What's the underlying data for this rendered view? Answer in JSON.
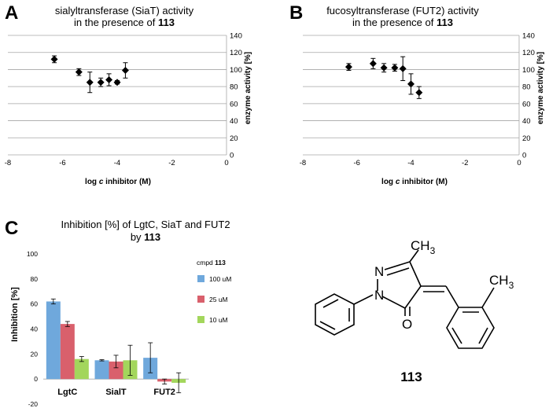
{
  "chart_data": [
    {
      "panel": "A",
      "type": "scatter",
      "title_line1": "sialyltransferase (SiaT) activity",
      "title_line2_prefix": "in the presence of ",
      "title_line2_bold": "113",
      "xlabel_prefix": "log ",
      "xlabel_italic": "c",
      "xlabel_suffix": " inhibitor (M)",
      "ylabel": "enzyme activity [%]",
      "xlim": [
        -8,
        0
      ],
      "ylim": [
        0,
        140
      ],
      "xticks": [
        -8,
        -6,
        -4,
        -2,
        0
      ],
      "yticks": [
        0,
        20,
        40,
        60,
        80,
        100,
        120,
        140
      ],
      "points": [
        {
          "x": -6.3,
          "y": 112,
          "err": 4
        },
        {
          "x": -5.4,
          "y": 97,
          "err": 4
        },
        {
          "x": -5.0,
          "y": 85,
          "err": 12
        },
        {
          "x": -4.6,
          "y": 85,
          "err": 5
        },
        {
          "x": -4.3,
          "y": 88,
          "err": 7
        },
        {
          "x": -4.0,
          "y": 85,
          "err": 2
        },
        {
          "x": -3.7,
          "y": 99,
          "err": 9
        }
      ]
    },
    {
      "panel": "B",
      "type": "scatter",
      "title_line1": "fucosyltransferase (FUT2) activity",
      "title_line2_prefix": "in the presence of ",
      "title_line2_bold": "113",
      "xlabel_prefix": "log ",
      "xlabel_italic": "c",
      "xlabel_suffix": " inhibitor (M)",
      "ylabel": "enzyme activity [%]",
      "xlim": [
        -8,
        0
      ],
      "ylim": [
        0,
        140
      ],
      "xticks": [
        -8,
        -6,
        -4,
        -2,
        0
      ],
      "yticks": [
        0,
        20,
        40,
        60,
        80,
        100,
        120,
        140
      ],
      "points": [
        {
          "x": -6.3,
          "y": 103,
          "err": 4
        },
        {
          "x": -5.4,
          "y": 107,
          "err": 6
        },
        {
          "x": -5.0,
          "y": 102,
          "err": 5
        },
        {
          "x": -4.6,
          "y": 102,
          "err": 4
        },
        {
          "x": -4.3,
          "y": 101,
          "err": 14
        },
        {
          "x": -4.0,
          "y": 83,
          "err": 12
        },
        {
          "x": -3.7,
          "y": 73,
          "err": 7
        }
      ]
    },
    {
      "panel": "C",
      "type": "bar",
      "title_line1": "Inhibition [%] of LgtC, SiaT and FUT2",
      "title_line2_prefix": "by ",
      "title_line2_bold": "113",
      "ylabel": "Inhibition [%]",
      "ylim": [
        -20,
        100
      ],
      "yticks": [
        -20,
        0,
        20,
        40,
        60,
        80,
        100
      ],
      "categories": [
        "LgtC",
        "SialT",
        "FUT2"
      ],
      "legend_title_prefix": "cmpd ",
      "legend_title_bold": "113",
      "series": [
        {
          "name": "100 uM",
          "color": "#6fa8dc",
          "values": [
            62,
            15,
            17
          ],
          "errors": [
            2,
            0.5,
            12
          ]
        },
        {
          "name": "25 uM",
          "color": "#d9606c",
          "values": [
            44,
            14,
            -2
          ],
          "errors": [
            2,
            5,
            2
          ]
        },
        {
          "name": "10 uM",
          "color": "#a3d65c",
          "values": [
            16,
            15,
            -3
          ],
          "errors": [
            2,
            12,
            8
          ]
        }
      ]
    }
  ],
  "panel_letters": {
    "a": "A",
    "b": "B",
    "c": "C"
  },
  "structure": {
    "compound_number": "113",
    "labels": {
      "n1": "N",
      "n2": "N",
      "o": "O",
      "ch3_top": "CH",
      "ch3_right": "CH",
      "sub3": "3"
    }
  }
}
